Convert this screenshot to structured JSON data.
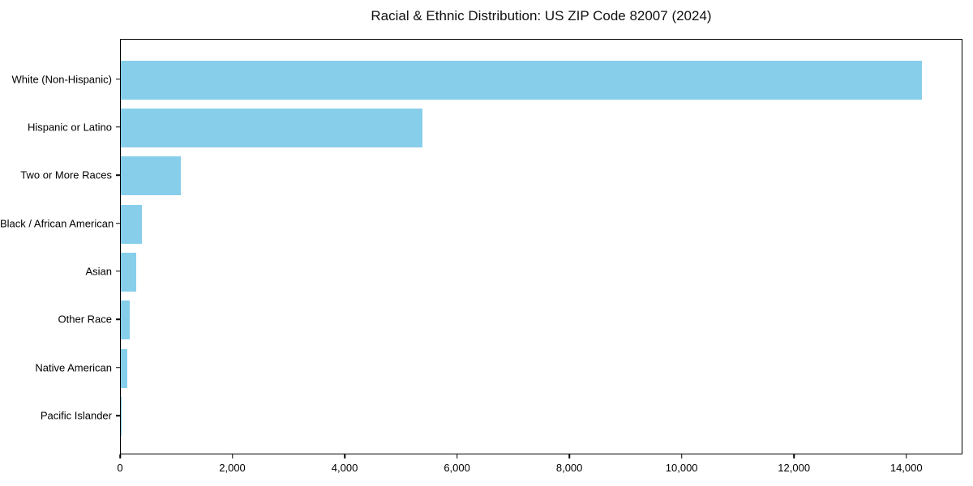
{
  "chart_data": {
    "type": "bar",
    "orientation": "horizontal",
    "title": "Racial & Ethnic Distribution: US ZIP Code 82007 (2024)",
    "categories": [
      "White (Non-Hispanic)",
      "Hispanic or Latino",
      "Two or More Races",
      "Black / African American",
      "Asian",
      "Other Race",
      "Native American",
      "Pacific Islander"
    ],
    "values": [
      14300,
      5390,
      1070,
      380,
      275,
      165,
      115,
      15
    ],
    "xlabel": "",
    "ylabel": "",
    "xlim": [
      0,
      15000
    ],
    "xticks": [
      0,
      2000,
      4000,
      6000,
      8000,
      10000,
      12000,
      14000
    ],
    "xtick_labels": [
      "0",
      "2,000",
      "4,000",
      "6,000",
      "8,000",
      "10,000",
      "12,000",
      "14,000"
    ],
    "bar_color": "#87CEEB",
    "frame_color": "#000000",
    "text_color": "#000000",
    "background_color": "#ffffff",
    "grid": false,
    "legend": null
  }
}
